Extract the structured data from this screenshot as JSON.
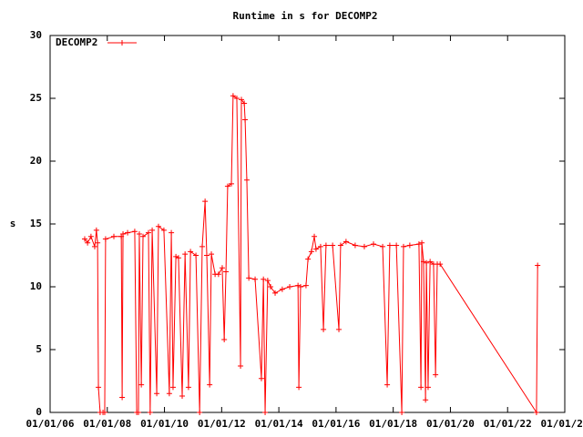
{
  "chart_data": {
    "type": "line",
    "title": "Runtime in s for DECOMP2",
    "y_label": "s",
    "x": [
      7.21,
      7.31,
      7.43,
      7.56,
      7.62,
      7.66,
      7.69,
      7.75,
      7.85,
      7.91,
      7.94,
      8.23,
      8.49,
      8.52,
      8.55,
      8.71,
      8.96,
      9.03,
      9.09,
      9.12,
      9.19,
      9.25,
      9.44,
      9.5,
      9.57,
      9.73,
      9.79,
      9.98,
      10.17,
      10.24,
      10.3,
      10.4,
      10.49,
      10.62,
      10.72,
      10.84,
      10.91,
      11.1,
      11.23,
      11.32,
      11.42,
      11.48,
      11.58,
      11.64,
      11.77,
      11.89,
      12.02,
      12.09,
      12.15,
      12.21,
      12.34,
      12.4,
      12.53,
      12.66,
      12.69,
      12.79,
      12.82,
      12.88,
      12.95,
      13.17,
      13.39,
      13.46,
      13.52,
      13.61,
      13.71,
      13.87,
      14.12,
      14.38,
      14.67,
      14.7,
      14.76,
      14.95,
      15.02,
      15.14,
      15.24,
      15.3,
      15.46,
      15.56,
      15.65,
      15.88,
      16.1,
      16.16,
      16.35,
      16.67,
      16.99,
      17.31,
      17.63,
      17.79,
      17.88,
      18.11,
      18.3,
      18.36,
      18.58,
      18.9,
      18.97,
      19.0,
      19.06,
      19.13,
      19.16,
      19.22,
      19.29,
      19.41,
      19.48,
      19.54,
      19.64,
      23.01,
      23.05
    ],
    "series": [
      {
        "name": "DECOMP2",
        "color": "#ff0000",
        "values": [
          13.8,
          13.5,
          14,
          13.2,
          14.5,
          13.5,
          2,
          0,
          0,
          0,
          13.8,
          14,
          14,
          1.2,
          14.2,
          14.3,
          14.4,
          0,
          0,
          14.2,
          2.2,
          14,
          14.3,
          0,
          14.5,
          1.5,
          14.8,
          14.5,
          1.5,
          14.3,
          2,
          12.4,
          12.3,
          1.3,
          12.6,
          2,
          12.8,
          12.5,
          0,
          13.2,
          16.8,
          12.5,
          2.2,
          12.6,
          11,
          11,
          11.5,
          5.8,
          11.2,
          18,
          18.2,
          25.2,
          25,
          3.7,
          24.9,
          24.6,
          23.3,
          18.5,
          10.7,
          10.6,
          2.7,
          10.6,
          0,
          10.5,
          10,
          9.5,
          9.8,
          10,
          10.1,
          2,
          10,
          10.1,
          12.2,
          12.8,
          14,
          13,
          13.2,
          6.6,
          13.3,
          13.3,
          6.6,
          13.3,
          13.6,
          13.3,
          13.2,
          13.4,
          13.2,
          2.2,
          13.3,
          13.3,
          0,
          13.2,
          13.3,
          13.4,
          2,
          13.5,
          12,
          1,
          11.9,
          2,
          12,
          11.8,
          3,
          11.8,
          11.8,
          0,
          11.7
        ]
      }
    ],
    "xlim": [
      6,
      24
    ],
    "xticks": [
      {
        "value": 6,
        "label": "01/01/06"
      },
      {
        "value": 8,
        "label": "01/01/08"
      },
      {
        "value": 10,
        "label": "01/01/10"
      },
      {
        "value": 12,
        "label": "01/01/12"
      },
      {
        "value": 14,
        "label": "01/01/14"
      },
      {
        "value": 16,
        "label": "01/01/16"
      },
      {
        "value": 18,
        "label": "01/01/18"
      },
      {
        "value": 20,
        "label": "01/01/20"
      },
      {
        "value": 22,
        "label": "01/01/22"
      },
      {
        "value": 24,
        "label": "01/01/24"
      }
    ],
    "ylim": [
      0,
      30
    ],
    "yticks": [
      0,
      5,
      10,
      15,
      20,
      25,
      30
    ],
    "grid": false,
    "legend": "top-left"
  }
}
